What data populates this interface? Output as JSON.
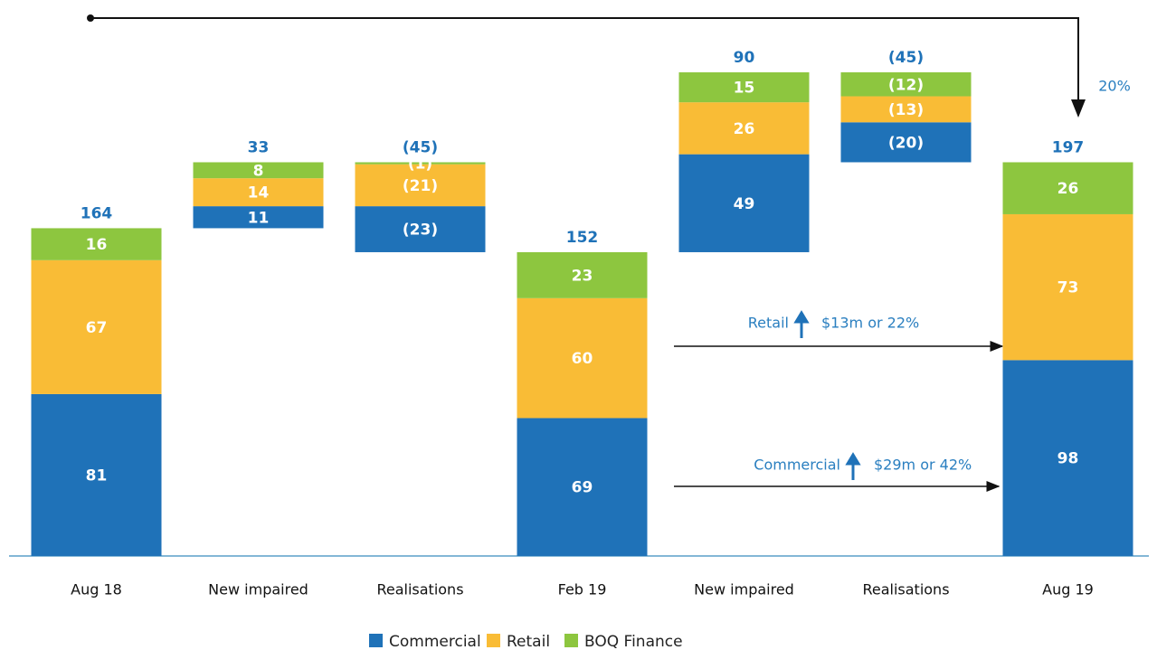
{
  "chart_data": {
    "type": "waterfall",
    "categories": [
      "Aug 18",
      "New impaired",
      "Realisations",
      "Feb 19",
      "New impaired",
      "Realisations",
      "Aug 19"
    ],
    "series": [
      {
        "name": "Commercial",
        "color": "#1f72b8",
        "values": [
          81,
          11,
          -23,
          69,
          49,
          -20,
          98
        ],
        "value_labels": [
          null,
          null,
          "(23)",
          null,
          null,
          "(20)",
          null
        ]
      },
      {
        "name": "Retail",
        "color": "#f9bc36",
        "values": [
          67,
          14,
          -21,
          60,
          26,
          -13,
          73
        ],
        "value_labels": [
          null,
          null,
          "(21)",
          null,
          null,
          "(13)",
          null
        ]
      },
      {
        "name": "BOQ Finance",
        "color": "#8dc63f",
        "values": [
          16,
          8,
          -1,
          23,
          15,
          -12,
          26
        ],
        "value_labels": [
          null,
          null,
          "(1)",
          null,
          null,
          "(12)",
          null
        ]
      }
    ],
    "totals": [
      164,
      33,
      -45,
      152,
      90,
      -45,
      197
    ],
    "totals_labels": [
      null,
      null,
      "(45)",
      null,
      null,
      "(45)",
      null
    ],
    "annotations": {
      "growth": "20%",
      "retail_name": "Retail",
      "retail_change": "$13m or 22%",
      "commercial_name": "Commercial",
      "commercial_change": "$29m or 42%"
    },
    "legend": "bottom"
  }
}
